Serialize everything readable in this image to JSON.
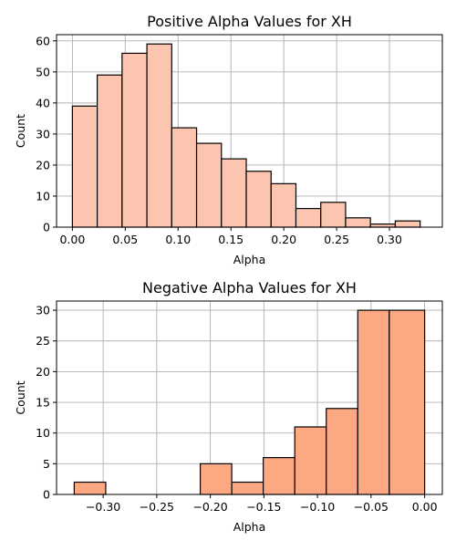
{
  "chart_data": [
    {
      "type": "bar",
      "title": "Positive Alpha Values for XH",
      "xlabel": "Alpha",
      "ylabel": "Count",
      "bar_color": "#fcc5b0",
      "edge_color": "#000000",
      "grid": true,
      "xlim": [
        -0.015,
        0.35
      ],
      "ylim": [
        0,
        62
      ],
      "xticks": [
        0.0,
        0.05,
        0.1,
        0.15,
        0.2,
        0.25,
        0.3
      ],
      "xtick_labels": [
        "0.00",
        "0.05",
        "0.10",
        "0.15",
        "0.20",
        "0.25",
        "0.30"
      ],
      "yticks": [
        0,
        10,
        20,
        30,
        40,
        50,
        60
      ],
      "ytick_labels": [
        "0",
        "10",
        "20",
        "30",
        "40",
        "50",
        "60"
      ],
      "bin_edges": [
        0.0,
        0.0235,
        0.047,
        0.0705,
        0.094,
        0.1175,
        0.141,
        0.1645,
        0.188,
        0.2115,
        0.235,
        0.2585,
        0.282,
        0.3055,
        0.329
      ],
      "values": [
        39,
        49,
        56,
        59,
        32,
        27,
        22,
        18,
        14,
        6,
        8,
        3,
        1,
        2
      ]
    },
    {
      "type": "bar",
      "title": "Negative Alpha Values for XH",
      "xlabel": "Alpha",
      "ylabel": "Count",
      "bar_color": "#fca883",
      "edge_color": "#000000",
      "grid": true,
      "xlim": [
        -0.3435,
        0.0165
      ],
      "ylim": [
        0,
        31.5
      ],
      "xticks": [
        -0.3,
        -0.25,
        -0.2,
        -0.15,
        -0.1,
        -0.05,
        0.0
      ],
      "xtick_labels": [
        "−0.30",
        "−0.25",
        "−0.20",
        "−0.15",
        "−0.10",
        "−0.05",
        "0.00"
      ],
      "yticks": [
        0,
        5,
        10,
        15,
        20,
        25,
        30
      ],
      "ytick_labels": [
        "0",
        "5",
        "10",
        "15",
        "20",
        "25",
        "30"
      ],
      "bin_edges": [
        -0.327,
        -0.2976,
        -0.2682,
        -0.2388,
        -0.2094,
        -0.18,
        -0.1506,
        -0.1212,
        -0.0918,
        -0.0624,
        -0.033,
        0.0
      ],
      "values": [
        2,
        0,
        0,
        0,
        5,
        2,
        6,
        11,
        14,
        30,
        30
      ]
    }
  ]
}
